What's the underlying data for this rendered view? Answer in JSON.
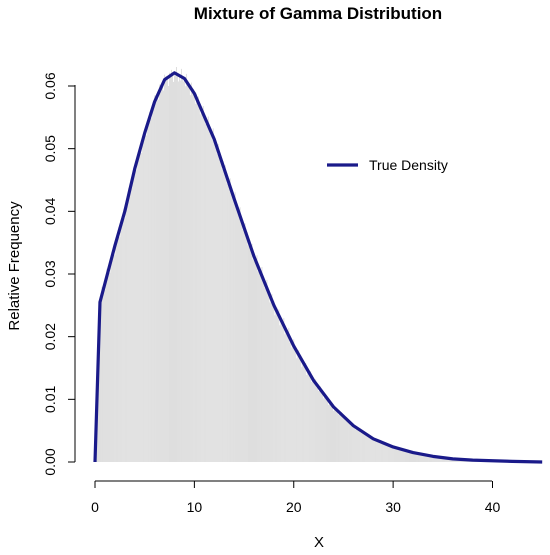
{
  "chart_data": {
    "type": "line",
    "title": "Mixture of Gamma Distribution",
    "xlabel": "X",
    "ylabel": "Relative Frequency",
    "xlim": [
      0,
      45
    ],
    "ylim": [
      0,
      0.062
    ],
    "x_ticks": [
      0,
      10,
      20,
      30,
      40
    ],
    "x_tick_labels": [
      "0",
      "10",
      "20",
      "30",
      "40"
    ],
    "y_ticks": [
      0.0,
      0.01,
      0.02,
      0.03,
      0.04,
      0.05,
      0.06
    ],
    "y_tick_labels": [
      "0.00",
      "0.01",
      "0.02",
      "0.03",
      "0.04",
      "0.05",
      "0.06"
    ],
    "grid": false,
    "legend": {
      "position": "top-right",
      "entries": [
        {
          "label": "True Density",
          "color": "#1a1a8a"
        }
      ]
    },
    "series": [
      {
        "name": "True Density",
        "color": "#1a1a8a",
        "x": [
          0,
          0.5,
          1,
          2,
          3,
          4,
          5,
          6,
          7,
          8,
          9,
          10,
          12,
          14,
          16,
          18,
          20,
          22,
          24,
          26,
          28,
          30,
          32,
          34,
          36,
          38,
          40,
          42,
          45
        ],
        "y": [
          0.0,
          0.0255,
          0.0285,
          0.0345,
          0.04,
          0.0468,
          0.0525,
          0.0575,
          0.061,
          0.0621,
          0.0612,
          0.0588,
          0.0515,
          0.042,
          0.0328,
          0.025,
          0.0185,
          0.013,
          0.0088,
          0.0058,
          0.0037,
          0.0024,
          0.0015,
          0.0009,
          0.0005,
          0.0003,
          0.0002,
          0.0001,
          0.0
        ]
      }
    ],
    "histogram": {
      "color": "#d9d9d9",
      "bin_width": 0.1,
      "range": [
        0,
        45
      ]
    }
  }
}
